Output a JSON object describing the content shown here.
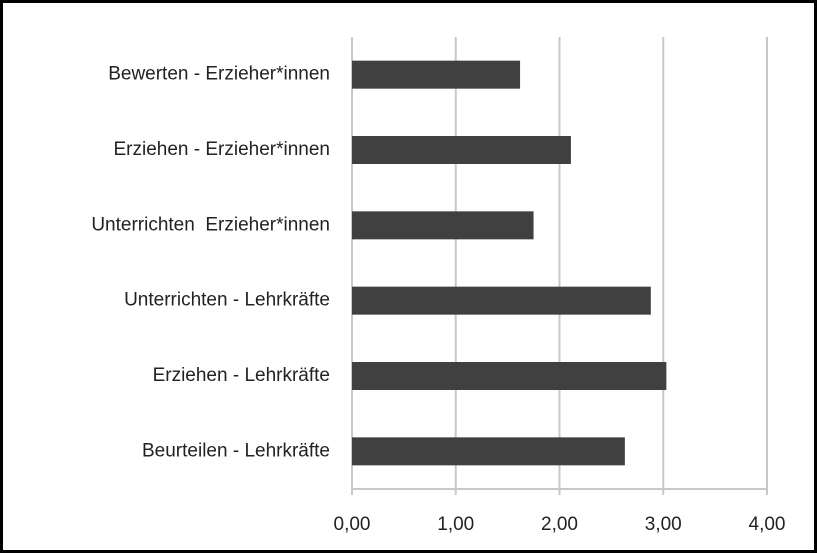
{
  "chart_data": {
    "type": "bar",
    "orientation": "horizontal",
    "categories": [
      "Bewerten - Erzieher*innen",
      "Erziehen - Erzieher*innen",
      "Unterrichten  Erzieher*innen",
      "Unterrichten - Lehrkräfte",
      "Erziehen - Lehrkräfte",
      "Beurteilen - Lehrkräfte"
    ],
    "values": [
      1.62,
      2.11,
      1.75,
      2.88,
      3.03,
      2.63
    ],
    "color": "#404040",
    "xlim": [
      0,
      4
    ],
    "xticks": [
      {
        "value": 0,
        "label": "0,00"
      },
      {
        "value": 1,
        "label": "1,00"
      },
      {
        "value": 2,
        "label": "2,00"
      },
      {
        "value": 3,
        "label": "3,00"
      },
      {
        "value": 4,
        "label": "4,00"
      }
    ],
    "grid": true
  }
}
